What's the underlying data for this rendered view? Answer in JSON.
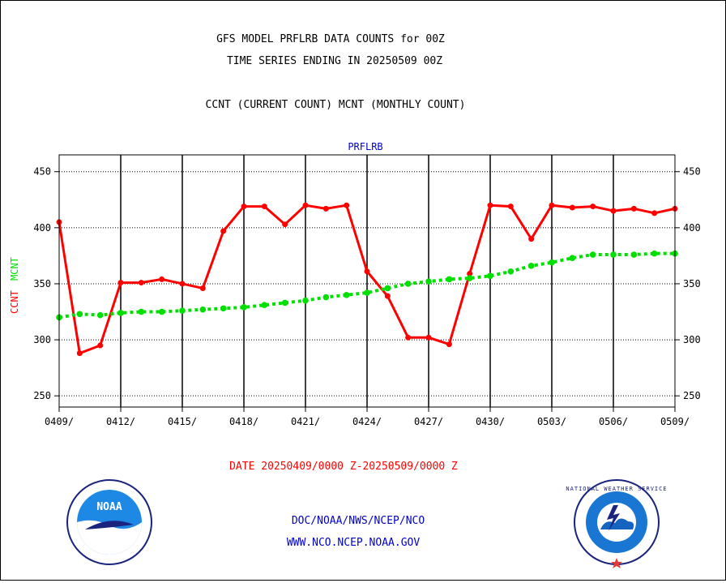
{
  "header": {
    "title_line1": "GFS MODEL PRFLRB DATA COUNTS for 00Z",
    "title_line2": "TIME SERIES ENDING IN 20250509 00Z",
    "subtitle": "CCNT (CURRENT COUNT) MCNT (MONTHLY COUNT)"
  },
  "footer": {
    "date_range": "DATE 20250409/0000 Z-20250509/0000 Z",
    "org_path": "DOC/NOAA/NWS/NCEP/NCO",
    "website": "WWW.NCO.NCEP.NOAA.GOV"
  },
  "logos": {
    "noaa_text": "NOAA",
    "nws_text": "NATIONAL WEATHER SERVICE"
  },
  "colors": {
    "ccnt": "#ff0000",
    "mcnt": "#00e000",
    "panel_title": "#0000cc",
    "footer_blue": "#0000cc",
    "date_red": "#ff0000"
  },
  "chart_data": {
    "type": "line",
    "title": "PRFLRB",
    "ylabel_series": [
      "CCNT",
      "MCNT"
    ],
    "xlabel": "DATE 20250409/0000 Z-20250509/0000 Z",
    "ylim": [
      240,
      465
    ],
    "grid": true,
    "yticks": [
      250,
      300,
      350,
      400,
      450
    ],
    "ytick_labels": [
      "250",
      "300",
      "350",
      "400",
      "450"
    ],
    "xticks": [
      "0409/",
      "0412/",
      "0415/",
      "0418/",
      "0421/",
      "0424/",
      "0427/",
      "0430/",
      "0503/",
      "0506/",
      "0509/"
    ],
    "x": [
      "0409",
      "0410",
      "0411",
      "0412",
      "0413",
      "0414",
      "0415",
      "0416",
      "0417",
      "0418",
      "0419",
      "0420",
      "0421",
      "0422",
      "0423",
      "0424",
      "0425",
      "0426",
      "0427",
      "0428",
      "0429",
      "0430",
      "0501",
      "0502",
      "0503",
      "0504",
      "0505",
      "0506",
      "0507",
      "0508",
      "0509"
    ],
    "series": [
      {
        "name": "CCNT",
        "values": [
          405,
          288,
          295,
          351,
          351,
          354,
          350,
          346,
          397,
          419,
          419,
          403,
          420,
          417,
          420,
          361,
          339,
          302,
          302,
          296,
          359,
          420,
          419,
          390,
          420,
          418,
          419,
          415,
          417,
          413,
          417
        ]
      },
      {
        "name": "MCNT",
        "values": [
          320,
          323,
          322,
          324,
          325,
          325,
          326,
          327,
          328,
          329,
          331,
          333,
          335,
          338,
          340,
          342,
          346,
          350,
          352,
          354,
          355,
          357,
          361,
          366,
          369,
          373,
          376,
          376,
          376,
          377,
          377
        ]
      }
    ]
  }
}
